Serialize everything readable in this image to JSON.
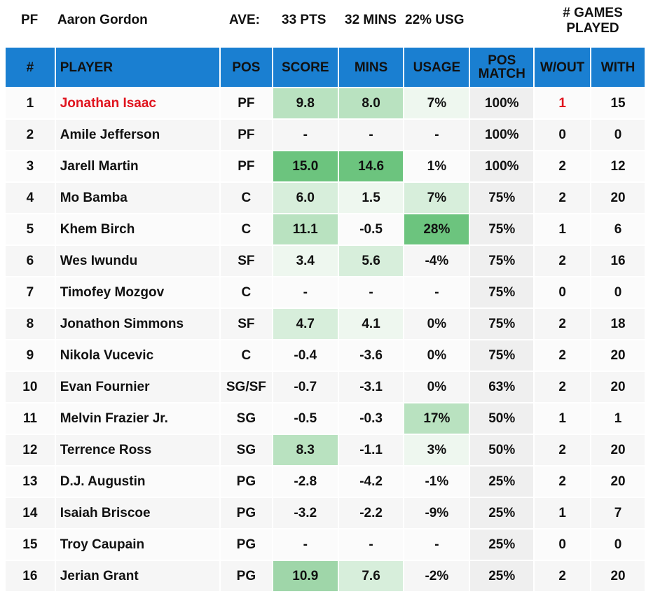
{
  "header": {
    "position": "PF",
    "player_name": "Aaron Gordon",
    "ave_label": "AVE:",
    "pts": "33 PTS",
    "mins": "32 MINS",
    "usg": "22% USG",
    "games_played": "# GAMES PLAYED"
  },
  "columns": {
    "num": "#",
    "player": "PLAYER",
    "pos": "POS",
    "score": "SCORE",
    "mins": "MINS",
    "usage": "USAGE",
    "pos_match": "POS MATCH",
    "without": "W/OUT",
    "with": "WITH"
  },
  "colors": {
    "header_bg": "#1a7fd1",
    "highlight_text": "#e0141e",
    "green_scale": [
      "#eef7ef",
      "#d7eedb",
      "#b9e2c0",
      "#9fd6a9",
      "#6cc47e"
    ]
  },
  "rows": [
    {
      "num": "1",
      "player": "Jonathan Isaac",
      "pos": "PF",
      "score": "9.8",
      "mins": "8.0",
      "usage": "7%",
      "pos_match": "100%",
      "without": "1",
      "with": "15",
      "highlight": true,
      "score_level": 3,
      "mins_level": 3,
      "usage_level": 1
    },
    {
      "num": "2",
      "player": "Amile Jefferson",
      "pos": "PF",
      "score": "-",
      "mins": "-",
      "usage": "-",
      "pos_match": "100%",
      "without": "0",
      "with": "0",
      "score_level": 0,
      "mins_level": 0,
      "usage_level": 0
    },
    {
      "num": "3",
      "player": "Jarell Martin",
      "pos": "PF",
      "score": "15.0",
      "mins": "14.6",
      "usage": "1%",
      "pos_match": "100%",
      "without": "2",
      "with": "12",
      "score_level": 5,
      "mins_level": 5,
      "usage_level": 0
    },
    {
      "num": "4",
      "player": "Mo Bamba",
      "pos": "C",
      "score": "6.0",
      "mins": "1.5",
      "usage": "7%",
      "pos_match": "75%",
      "without": "2",
      "with": "20",
      "score_level": 2,
      "mins_level": 1,
      "usage_level": 2
    },
    {
      "num": "5",
      "player": "Khem Birch",
      "pos": "C",
      "score": "11.1",
      "mins": "-0.5",
      "usage": "28%",
      "pos_match": "75%",
      "without": "1",
      "with": "6",
      "score_level": 3,
      "mins_level": 0,
      "usage_level": 5
    },
    {
      "num": "6",
      "player": "Wes Iwundu",
      "pos": "SF",
      "score": "3.4",
      "mins": "5.6",
      "usage": "-4%",
      "pos_match": "75%",
      "without": "2",
      "with": "16",
      "score_level": 1,
      "mins_level": 2,
      "usage_level": 0
    },
    {
      "num": "7",
      "player": "Timofey Mozgov",
      "pos": "C",
      "score": "-",
      "mins": "-",
      "usage": "-",
      "pos_match": "75%",
      "without": "0",
      "with": "0",
      "score_level": 0,
      "mins_level": 0,
      "usage_level": 0
    },
    {
      "num": "8",
      "player": "Jonathon Simmons",
      "pos": "SF",
      "score": "4.7",
      "mins": "4.1",
      "usage": "0%",
      "pos_match": "75%",
      "without": "2",
      "with": "18",
      "score_level": 2,
      "mins_level": 1,
      "usage_level": 0
    },
    {
      "num": "9",
      "player": "Nikola Vucevic",
      "pos": "C",
      "score": "-0.4",
      "mins": "-3.6",
      "usage": "0%",
      "pos_match": "75%",
      "without": "2",
      "with": "20",
      "score_level": 0,
      "mins_level": 0,
      "usage_level": 0
    },
    {
      "num": "10",
      "player": "Evan Fournier",
      "pos": "SG/SF",
      "score": "-0.7",
      "mins": "-3.1",
      "usage": "0%",
      "pos_match": "63%",
      "without": "2",
      "with": "20",
      "score_level": 0,
      "mins_level": 0,
      "usage_level": 0
    },
    {
      "num": "11",
      "player": "Melvin Frazier Jr.",
      "pos": "SG",
      "score": "-0.5",
      "mins": "-0.3",
      "usage": "17%",
      "pos_match": "50%",
      "without": "1",
      "with": "1",
      "score_level": 0,
      "mins_level": 0,
      "usage_level": 3
    },
    {
      "num": "12",
      "player": "Terrence Ross",
      "pos": "SG",
      "score": "8.3",
      "mins": "-1.1",
      "usage": "3%",
      "pos_match": "50%",
      "without": "2",
      "with": "20",
      "score_level": 3,
      "mins_level": 0,
      "usage_level": 1
    },
    {
      "num": "13",
      "player": "D.J. Augustin",
      "pos": "PG",
      "score": "-2.8",
      "mins": "-4.2",
      "usage": "-1%",
      "pos_match": "25%",
      "without": "2",
      "with": "20",
      "score_level": 0,
      "mins_level": 0,
      "usage_level": 0
    },
    {
      "num": "14",
      "player": "Isaiah Briscoe",
      "pos": "PG",
      "score": "-3.2",
      "mins": "-2.2",
      "usage": "-9%",
      "pos_match": "25%",
      "without": "1",
      "with": "7",
      "score_level": 0,
      "mins_level": 0,
      "usage_level": 0
    },
    {
      "num": "15",
      "player": "Troy Caupain",
      "pos": "PG",
      "score": "-",
      "mins": "-",
      "usage": "-",
      "pos_match": "25%",
      "without": "0",
      "with": "0",
      "score_level": 0,
      "mins_level": 0,
      "usage_level": 0
    },
    {
      "num": "16",
      "player": "Jerian Grant",
      "pos": "PG",
      "score": "10.9",
      "mins": "7.6",
      "usage": "-2%",
      "pos_match": "25%",
      "without": "2",
      "with": "20",
      "score_level": 4,
      "mins_level": 2,
      "usage_level": 0
    }
  ]
}
